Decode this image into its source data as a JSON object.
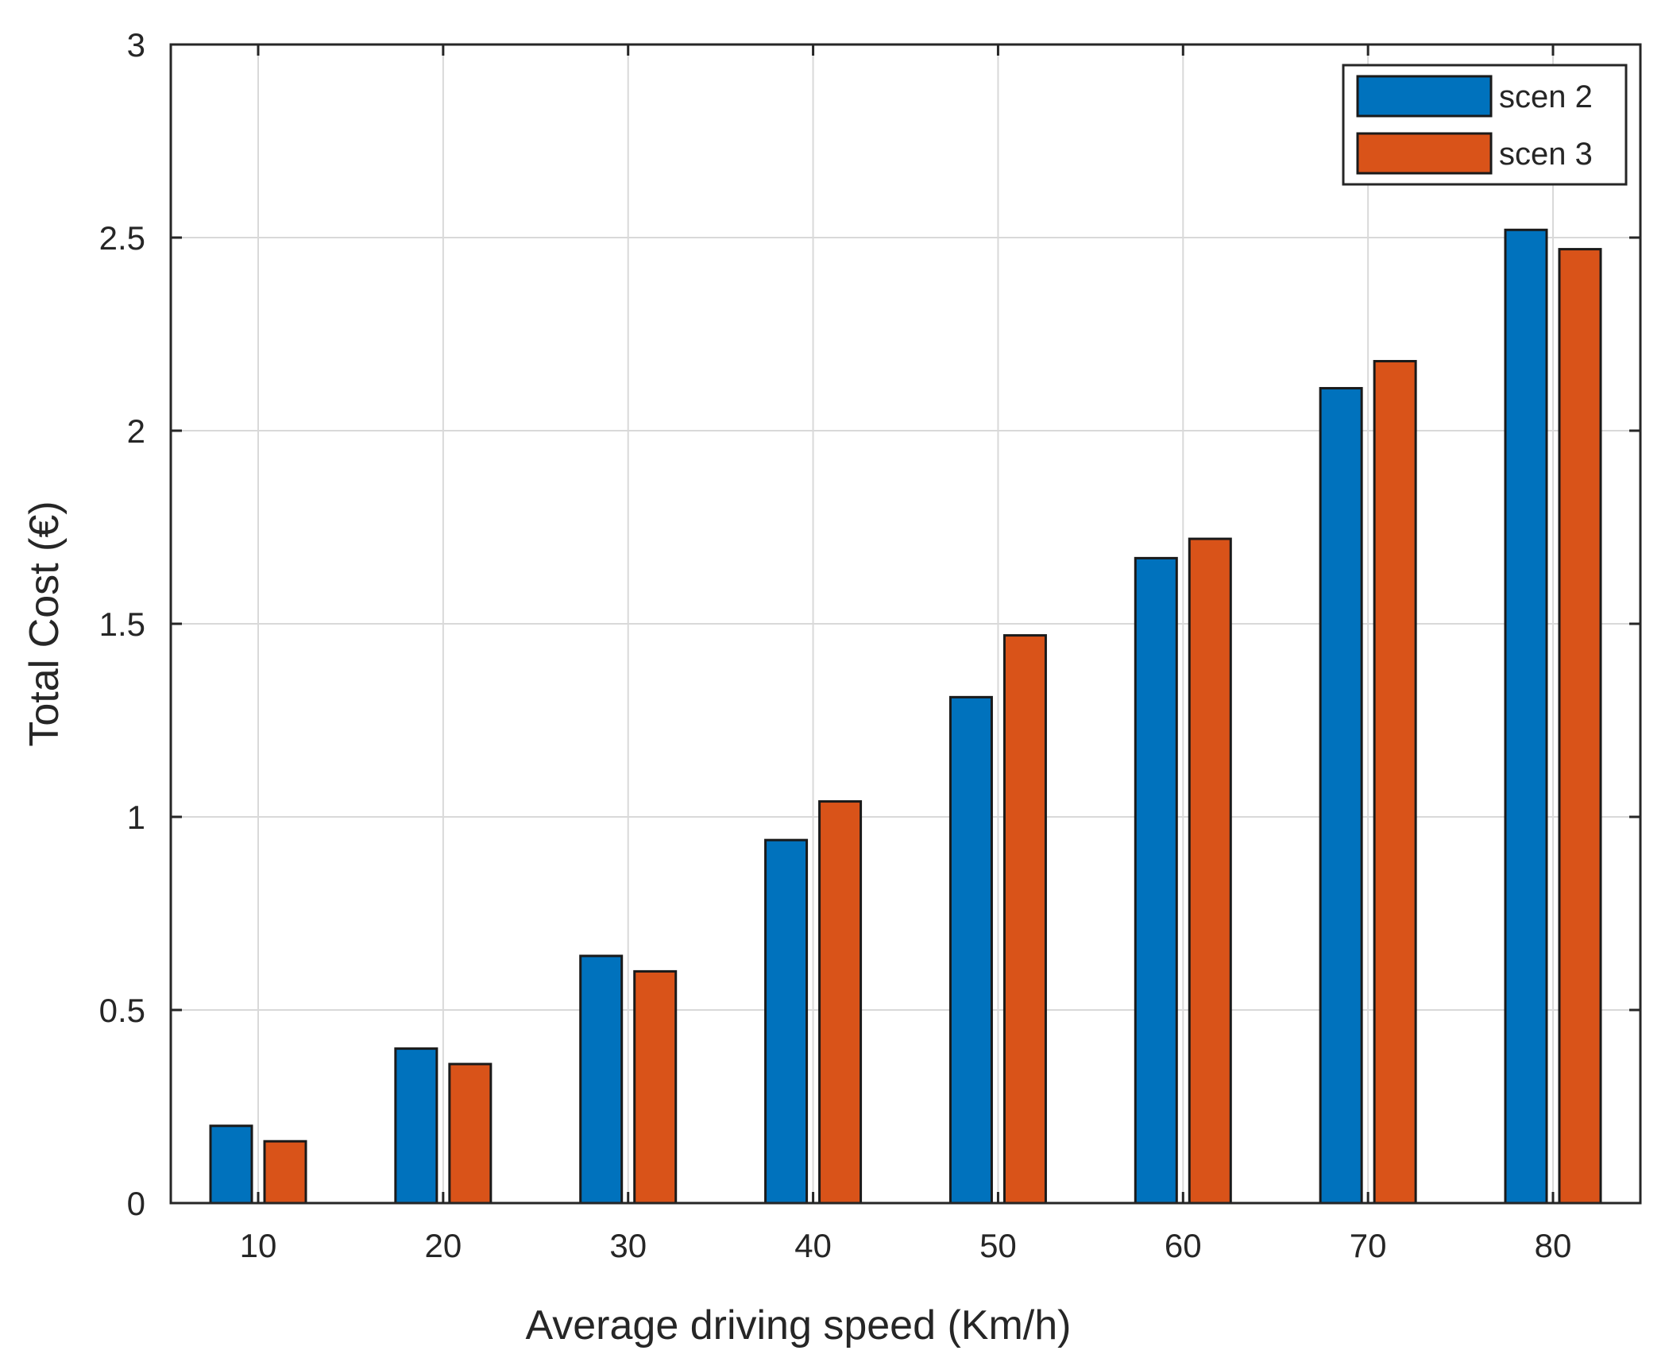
{
  "chart_data": {
    "type": "bar",
    "title": "",
    "xlabel": "Average driving speed (Km/h)",
    "ylabel": "Total Cost (€)",
    "categories": [
      "10",
      "20",
      "30",
      "40",
      "50",
      "60",
      "70",
      "80"
    ],
    "series": [
      {
        "name": "scen 2",
        "color": "#0072BD",
        "values": [
          0.2,
          0.4,
          0.64,
          0.94,
          1.31,
          1.67,
          2.11,
          2.52
        ]
      },
      {
        "name": "scen 3",
        "color": "#D95319",
        "values": [
          0.16,
          0.36,
          0.6,
          1.04,
          1.47,
          1.72,
          2.18,
          2.47
        ]
      }
    ],
    "ylim": [
      0,
      3
    ],
    "yticks": [
      0,
      0.5,
      1,
      1.5,
      2,
      2.5,
      3
    ],
    "ytick_labels": [
      "0",
      "0.5",
      "1",
      "1.5",
      "2",
      "2.5",
      "3"
    ],
    "grid": true,
    "legend_location": "top-right"
  }
}
